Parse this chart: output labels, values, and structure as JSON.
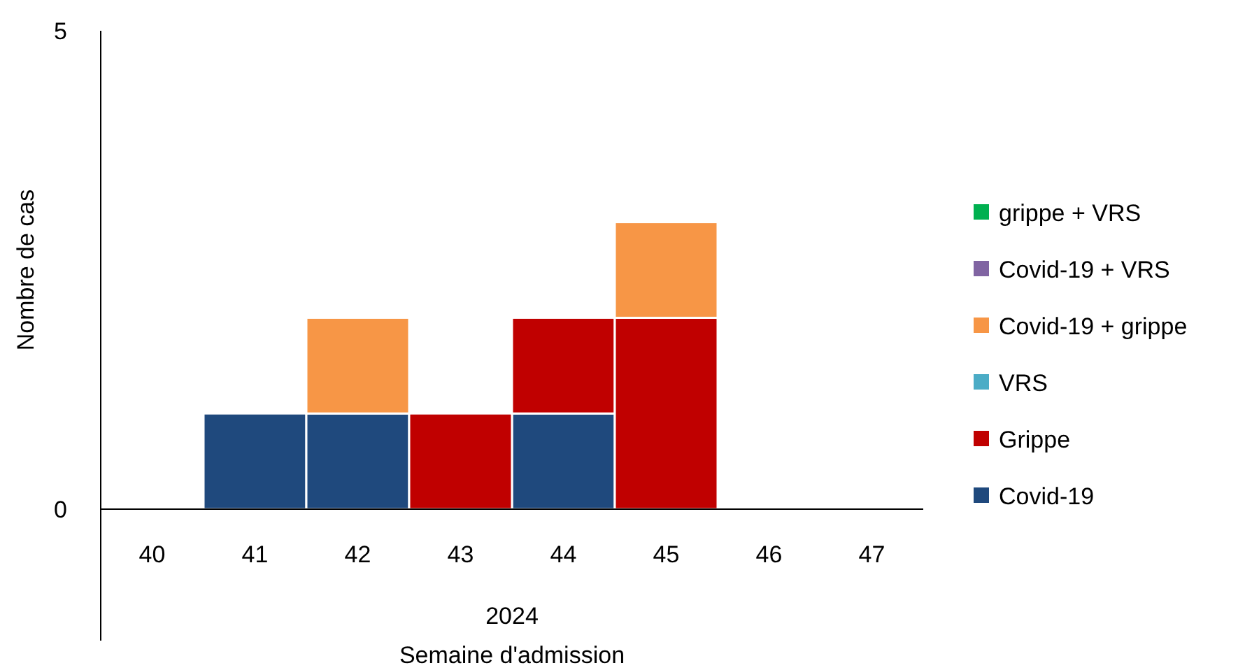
{
  "chart_data": {
    "type": "bar",
    "stacked": true,
    "ylabel": "Nombre de cas",
    "xlabel": "Semaine d'admission",
    "annotations": [
      "2024"
    ],
    "categories": [
      "40",
      "41",
      "42",
      "43",
      "44",
      "45",
      "46",
      "47"
    ],
    "series": [
      {
        "name": "Covid-19",
        "color": "#1f497d",
        "values": [
          0,
          1,
          1,
          0,
          1,
          0,
          0,
          0
        ]
      },
      {
        "name": "Grippe",
        "color": "#c00000",
        "values": [
          0,
          0,
          0,
          1,
          1,
          2,
          0,
          0
        ]
      },
      {
        "name": "VRS",
        "color": "#4bacc6",
        "values": [
          0,
          0,
          0,
          0,
          0,
          0,
          0,
          0
        ]
      },
      {
        "name": "Covid-19 + grippe",
        "color": "#f79646",
        "values": [
          0,
          0,
          1,
          0,
          0,
          1,
          0,
          0
        ]
      },
      {
        "name": "Covid-19 + VRS",
        "color": "#8064a2",
        "values": [
          0,
          0,
          0,
          0,
          0,
          0,
          0,
          0
        ]
      },
      {
        "name": "grippe + VRS",
        "color": "#00b050",
        "values": [
          0,
          0,
          0,
          0,
          0,
          0,
          0,
          0
        ]
      }
    ],
    "ylim": [
      0,
      5
    ],
    "yticks": [
      0,
      5
    ],
    "grid": false,
    "legend": "right"
  }
}
